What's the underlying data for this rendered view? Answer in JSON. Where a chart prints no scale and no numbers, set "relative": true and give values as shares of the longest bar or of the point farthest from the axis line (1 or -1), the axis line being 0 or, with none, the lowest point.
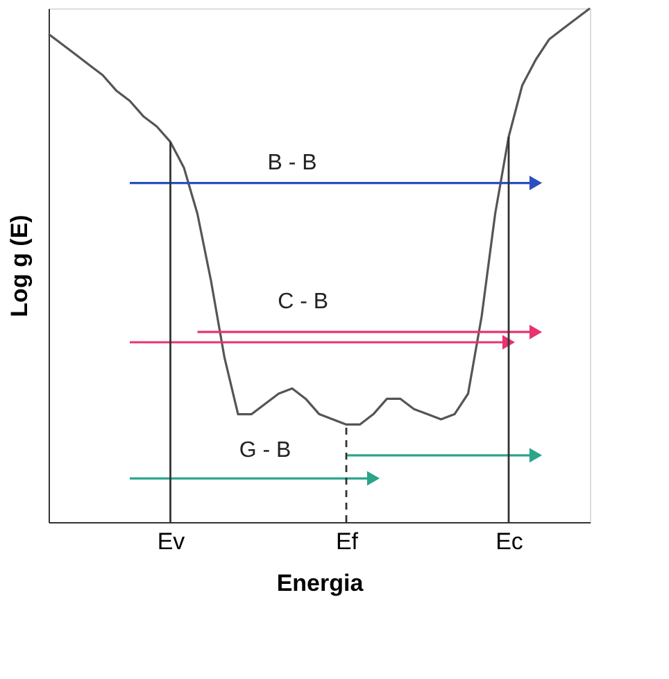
{
  "chart_data": {
    "type": "line",
    "relative": true,
    "xlabel": "Energia",
    "ylabel": "Log g (E)",
    "grid": false,
    "categories": [
      null,
      null,
      null,
      null,
      null,
      null,
      null,
      null,
      null,
      "Ev",
      null,
      null,
      null,
      null,
      null,
      null,
      null,
      null,
      null,
      null,
      null,
      null,
      "Ef",
      null,
      null,
      null,
      null,
      null,
      null,
      null,
      null,
      null,
      null,
      null,
      "Ec",
      null,
      null,
      null,
      null,
      null,
      null
    ],
    "series": [
      {
        "color": "#555555",
        "values": [
          0.95,
          0.93,
          0.91,
          0.89,
          0.87,
          0.84,
          0.82,
          0.79,
          0.77,
          0.74,
          0.69,
          0.6,
          0.47,
          0.32,
          0.21,
          0.21,
          0.23,
          0.25,
          0.26,
          0.24,
          0.21,
          0.2,
          0.19,
          0.19,
          0.21,
          0.24,
          0.24,
          0.22,
          0.21,
          0.2,
          0.21,
          0.25,
          0.4,
          0.6,
          0.75,
          0.85,
          0.9,
          0.94,
          0.96,
          0.98,
          1.0
        ]
      },
      {
        "color": "#2a4fc0",
        "values": [
          null,
          null,
          null,
          null,
          null,
          null,
          0.66,
          0.66,
          0.66,
          0.66,
          0.66,
          0.66,
          0.66,
          0.66,
          0.66,
          0.66,
          0.66,
          0.66,
          0.66,
          0.66,
          0.66,
          0.66,
          0.66,
          0.66,
          0.66,
          0.66,
          0.66,
          0.66,
          0.66,
          0.66,
          0.66,
          0.66,
          0.66,
          0.66,
          0.66,
          0.66,
          0.66,
          null,
          null,
          null,
          null
        ]
      },
      {
        "color": "#e8336e",
        "values": [
          null,
          null,
          null,
          null,
          null,
          null,
          0.35,
          0.35,
          0.35,
          0.35,
          0.35,
          0.35,
          0.35,
          0.35,
          0.35,
          0.35,
          0.35,
          0.35,
          0.35,
          0.35,
          0.35,
          0.35,
          0.35,
          0.35,
          0.35,
          0.35,
          0.35,
          0.35,
          0.35,
          0.35,
          0.35,
          0.35,
          0.35,
          0.35,
          0.35,
          null,
          null,
          null,
          null,
          null,
          null
        ]
      },
      {
        "color": "#e8336e",
        "values": [
          null,
          null,
          null,
          null,
          null,
          null,
          null,
          null,
          null,
          null,
          null,
          0.37,
          0.37,
          0.37,
          0.37,
          0.37,
          0.37,
          0.37,
          0.37,
          0.37,
          0.37,
          0.37,
          0.37,
          0.37,
          0.37,
          0.37,
          0.37,
          0.37,
          0.37,
          0.37,
          0.37,
          0.37,
          0.37,
          0.37,
          0.37,
          0.37,
          0.37,
          null,
          null,
          null,
          null
        ]
      },
      {
        "color": "#2aa58a",
        "values": [
          null,
          null,
          null,
          null,
          null,
          null,
          0.085,
          0.085,
          0.085,
          0.085,
          0.085,
          0.085,
          0.085,
          0.085,
          0.085,
          0.085,
          0.085,
          0.085,
          0.085,
          0.085,
          0.085,
          0.085,
          0.085,
          0.085,
          0.085,
          null,
          null,
          null,
          null,
          null,
          null,
          null,
          null,
          null,
          null,
          null,
          null,
          null,
          null,
          null,
          null
        ]
      },
      {
        "color": "#2aa58a",
        "values": [
          null,
          null,
          null,
          null,
          null,
          null,
          null,
          null,
          null,
          null,
          null,
          null,
          null,
          null,
          null,
          null,
          null,
          null,
          null,
          null,
          null,
          null,
          0.13,
          0.13,
          0.13,
          0.13,
          0.13,
          0.13,
          0.13,
          0.13,
          0.13,
          0.13,
          0.13,
          0.13,
          0.13,
          0.13,
          0.13,
          null,
          null,
          null,
          null
        ]
      }
    ],
    "ref_lines": [
      {
        "axis": "x",
        "value": "Ev",
        "color": "#333333",
        "line_style": "solid"
      },
      {
        "axis": "x",
        "value": "Ef",
        "color": "#333333",
        "line_style": "dashed"
      },
      {
        "axis": "x",
        "value": "Ec",
        "color": "#333333",
        "line_style": "solid"
      }
    ],
    "annotations": [
      "B - B",
      "C - B",
      "G - B"
    ]
  }
}
